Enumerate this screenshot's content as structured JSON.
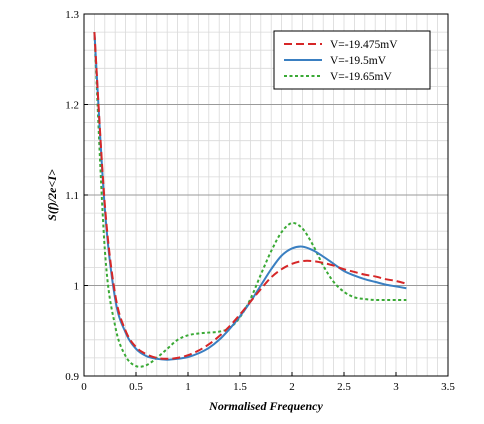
{
  "chart_data": {
    "type": "line",
    "xlabel": "Normalised Frequency",
    "ylabel": "S(f)/2e<I>",
    "xlim": [
      0,
      3.5
    ],
    "ylim": [
      0.9,
      1.3
    ],
    "x_ticks": [
      "0",
      "0.5",
      "1",
      "1.5",
      "2",
      "2.5",
      "3",
      "3.5"
    ],
    "y_ticks": [
      "0.9",
      "1",
      "1.1",
      "1.2",
      "1.3"
    ],
    "grid": true,
    "legend_position": "top-right",
    "series": [
      {
        "name": "V=-19.475mV",
        "color": "#d62728",
        "style": "dashed",
        "x": [
          0.1,
          0.2,
          0.3,
          0.4,
          0.5,
          0.6,
          0.7,
          0.8,
          0.9,
          1.0,
          1.1,
          1.2,
          1.3,
          1.4,
          1.5,
          1.6,
          1.7,
          1.8,
          1.9,
          2.0,
          2.1,
          2.2,
          2.3,
          2.4,
          2.5,
          2.6,
          2.7,
          2.8,
          2.9,
          3.0,
          3.1
        ],
        "y": [
          1.28,
          1.09,
          0.99,
          0.95,
          0.932,
          0.924,
          0.92,
          0.919,
          0.92,
          0.923,
          0.928,
          0.935,
          0.944,
          0.955,
          0.968,
          0.982,
          0.996,
          1.009,
          1.018,
          1.024,
          1.027,
          1.027,
          1.025,
          1.022,
          1.018,
          1.015,
          1.012,
          1.01,
          1.007,
          1.005,
          1.002
        ]
      },
      {
        "name": "V=-19.5mV",
        "color": "#3a7fc1",
        "style": "solid",
        "x": [
          0.1,
          0.2,
          0.3,
          0.4,
          0.5,
          0.6,
          0.7,
          0.8,
          0.9,
          1.0,
          1.1,
          1.2,
          1.3,
          1.4,
          1.5,
          1.6,
          1.7,
          1.8,
          1.9,
          2.0,
          2.1,
          2.2,
          2.3,
          2.4,
          2.5,
          2.6,
          2.7,
          2.8,
          2.9,
          3.0,
          3.1
        ],
        "y": [
          1.28,
          1.085,
          0.985,
          0.948,
          0.93,
          0.922,
          0.919,
          0.918,
          0.919,
          0.921,
          0.925,
          0.931,
          0.94,
          0.952,
          0.966,
          0.982,
          1.0,
          1.018,
          1.033,
          1.041,
          1.043,
          1.039,
          1.032,
          1.024,
          1.016,
          1.011,
          1.007,
          1.004,
          1.001,
          0.999,
          0.997
        ]
      },
      {
        "name": "V=-19.65mV",
        "color": "#3aa935",
        "style": "dotted",
        "x": [
          0.1,
          0.2,
          0.3,
          0.4,
          0.5,
          0.6,
          0.7,
          0.8,
          0.9,
          1.0,
          1.1,
          1.2,
          1.3,
          1.4,
          1.5,
          1.6,
          1.7,
          1.8,
          1.9,
          2.0,
          2.1,
          2.2,
          2.3,
          2.4,
          2.5,
          2.6,
          2.7,
          2.8,
          2.9,
          3.0,
          3.1
        ],
        "y": [
          1.28,
          1.04,
          0.955,
          0.922,
          0.911,
          0.912,
          0.92,
          0.93,
          0.94,
          0.945,
          0.947,
          0.948,
          0.949,
          0.953,
          0.965,
          0.985,
          1.012,
          1.038,
          1.059,
          1.069,
          1.063,
          1.045,
          1.022,
          1.004,
          0.993,
          0.987,
          0.985,
          0.984,
          0.984,
          0.984,
          0.984
        ]
      }
    ]
  }
}
